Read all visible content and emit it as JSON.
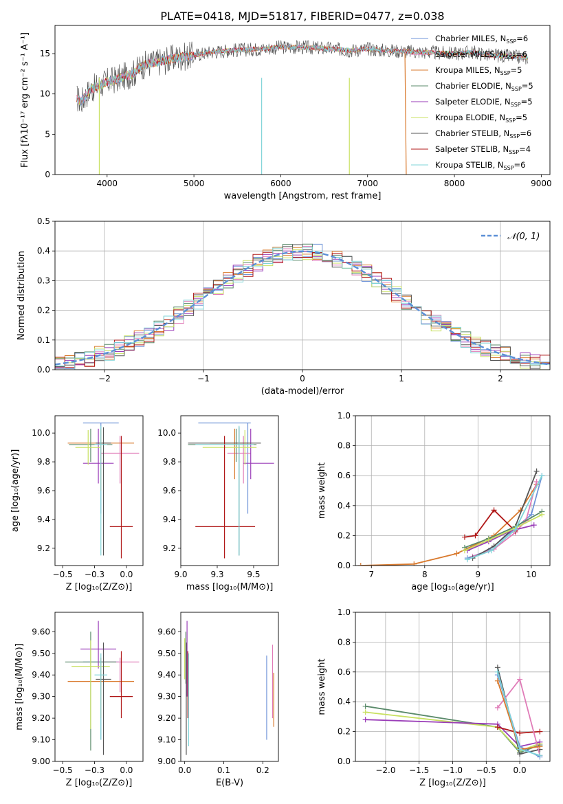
{
  "title": "PLATE=0418, MJD=51817, FIBERID=0477, z=0.038",
  "colors": {
    "chabrier_miles": "#6f94d8",
    "salpeter_miles": "#e07cb8",
    "kroupa_miles": "#d97a2e",
    "chabrier_elodie": "#5a8a6a",
    "salpeter_elodie": "#9a3db8",
    "kroupa_elodie": "#c8e060",
    "chabrier_stelib": "#555555",
    "salpeter_stelib": "#b01818",
    "kroupa_stelib": "#7fd4d8",
    "gauss": "#5b8fd6"
  },
  "legend_ssp": [
    {
      "label": "Chabrier MILES, N",
      "sub": "SSP",
      "tail": "=6",
      "color_key": "chabrier_miles"
    },
    {
      "label": "Salpeter MILES, N",
      "sub": "SSP",
      "tail": "=6",
      "color_key": "salpeter_miles"
    },
    {
      "label": "Kroupa MILES, N",
      "sub": "SSP",
      "tail": "=5",
      "color_key": "kroupa_miles"
    },
    {
      "label": "Chabrier ELODIE, N",
      "sub": "SSP",
      "tail": "=5",
      "color_key": "chabrier_elodie"
    },
    {
      "label": "Salpeter ELODIE, N",
      "sub": "SSP",
      "tail": "=5",
      "color_key": "salpeter_elodie"
    },
    {
      "label": "Kroupa ELODIE, N",
      "sub": "SSP",
      "tail": "=5",
      "color_key": "kroupa_elodie"
    },
    {
      "label": "Chabrier STELIB, N",
      "sub": "SSP",
      "tail": "=6",
      "color_key": "chabrier_stelib"
    },
    {
      "label": "Salpeter STELIB, N",
      "sub": "SSP",
      "tail": "=4",
      "color_key": "salpeter_stelib"
    },
    {
      "label": "Kroupa STELIB, N",
      "sub": "SSP",
      "tail": "=6",
      "color_key": "kroupa_stelib"
    }
  ],
  "chart_data": [
    {
      "id": "spectrum",
      "type": "line",
      "xlabel": "wavelength [Angstrom, rest frame]",
      "ylabel": "Flux [fλ10⁻¹⁷ erg cm⁻² s⁻¹ A⁻¹]",
      "xlim": [
        3400,
        9100
      ],
      "ylim": [
        0,
        18.5
      ],
      "xticks": [
        4000,
        5000,
        6000,
        7000,
        8000,
        9000
      ],
      "yticks": [
        0,
        5,
        10,
        15
      ],
      "data_envelope": {
        "x": [
          3650,
          3700,
          3800,
          3900,
          4000,
          4100,
          4200,
          4300,
          4400,
          4500,
          4600,
          4800,
          5000,
          5200,
          5400,
          5600,
          5800,
          6000,
          6200,
          6400,
          6600,
          6800,
          7000,
          7200,
          7400,
          7600,
          7800,
          8000,
          8200,
          8400,
          8600,
          8800
        ],
        "y": [
          9.5,
          9.0,
          10.5,
          11.0,
          11.5,
          11.8,
          12.2,
          12.5,
          13.5,
          13.8,
          14.0,
          14.5,
          14.8,
          15.2,
          15.4,
          15.5,
          15.6,
          15.8,
          15.8,
          15.7,
          15.6,
          15.4,
          15.6,
          15.4,
          15.3,
          15.2,
          15.1,
          15.0,
          15.2,
          14.8,
          14.7,
          14.5
        ]
      },
      "model_dropouts": [
        {
          "series": "kroupa_miles",
          "x_from": 7430
        },
        {
          "series": "kroupa_elodie",
          "x": 3910
        },
        {
          "series": "kroupa_stelib",
          "x": 5780
        },
        {
          "series": "kroupa_elodie",
          "x": 6790
        }
      ]
    },
    {
      "id": "residuals",
      "type": "histogram",
      "xlabel": "(data-model)/error",
      "ylabel": "Normed distribution",
      "xlim": [
        -2.5,
        2.5
      ],
      "ylim": [
        0,
        0.5
      ],
      "xticks": [
        -2,
        -1,
        0,
        1,
        2
      ],
      "yticks": [
        0.0,
        0.1,
        0.2,
        0.3,
        0.4,
        0.5
      ],
      "bin_width": 0.1,
      "gauss_label": "𝒩(0, 1)"
    },
    {
      "id": "age_vs_z",
      "type": "scatter",
      "xlabel": "Z [log₁₀(Z/Z⊙)]",
      "ylabel": "age  [log₁₀(age/yr)]",
      "xlim": [
        -0.56,
        0.13
      ],
      "ylim": [
        9.08,
        10.12
      ],
      "xticks": [
        -0.5,
        -0.25,
        0.0
      ],
      "yticks": [
        9.2,
        9.4,
        9.6,
        9.8,
        10.0
      ],
      "points": [
        {
          "s": "chabrier_miles",
          "x": -0.2,
          "xe": 0.14,
          "y": 10.07,
          "yl": 9.44,
          "yh": 10.07
        },
        {
          "s": "salpeter_miles",
          "x": -0.05,
          "xe": 0.15,
          "y": 9.86,
          "yl": 9.65,
          "yh": 9.98
        },
        {
          "s": "kroupa_miles",
          "x": -0.2,
          "xe": 0.26,
          "y": 9.93,
          "yl": 9.6,
          "yh": 10.03
        },
        {
          "s": "chabrier_elodie",
          "x": -0.28,
          "xe": 0.17,
          "y": 9.92,
          "yl": 9.8,
          "yh": 10.03
        },
        {
          "s": "salpeter_elodie",
          "x": -0.22,
          "xe": 0.12,
          "y": 9.79,
          "yl": 9.65,
          "yh": 10.03
        },
        {
          "s": "kroupa_elodie",
          "x": -0.3,
          "xe": 0.1,
          "y": 9.9,
          "yl": 9.78,
          "yh": 10.02
        },
        {
          "s": "chabrier_stelib",
          "x": -0.18,
          "xe": 0.06,
          "y": 9.93,
          "yl": 9.15,
          "yh": 10.04
        },
        {
          "s": "salpeter_stelib",
          "x": -0.04,
          "xe": 0.09,
          "y": 9.35,
          "yl": 9.13,
          "yh": 9.98
        },
        {
          "s": "kroupa_stelib",
          "x": -0.2,
          "xe": 0.05,
          "y": 9.92,
          "yl": 9.15,
          "yh": 10.05
        }
      ]
    },
    {
      "id": "age_vs_mass",
      "type": "scatter",
      "xlabel": "mass [log₁₀(M/M⊙)]",
      "ylabel": "",
      "xlim": [
        9.0,
        9.67
      ],
      "ylim": [
        9.08,
        10.12
      ],
      "xticks": [
        9.0,
        9.25,
        9.5
      ],
      "yticks": [
        9.2,
        9.4,
        9.6,
        9.8,
        10.0
      ],
      "points": [
        {
          "s": "chabrier_miles",
          "x": 9.46,
          "xl": 9.12,
          "xh": 9.48,
          "y": 10.07,
          "yl": 9.44,
          "yh": 10.07
        },
        {
          "s": "salpeter_miles",
          "x": 9.43,
          "xl": 9.32,
          "xh": 9.48,
          "y": 9.86,
          "yl": 9.65,
          "yh": 9.98
        },
        {
          "s": "kroupa_miles",
          "x": 9.37,
          "xl": 9.2,
          "xh": 9.48,
          "y": 9.93,
          "yl": 9.68,
          "yh": 10.03
        },
        {
          "s": "chabrier_elodie",
          "x": 9.38,
          "xl": 9.05,
          "xh": 9.52,
          "y": 9.92,
          "yl": 9.8,
          "yh": 10.03
        },
        {
          "s": "salpeter_elodie",
          "x": 9.48,
          "xl": 9.43,
          "xh": 9.64,
          "y": 9.79,
          "yl": 9.68,
          "yh": 10.03
        },
        {
          "s": "kroupa_elodie",
          "x": 9.44,
          "xl": 9.15,
          "xh": 9.52,
          "y": 9.9,
          "yl": 9.78,
          "yh": 10.02
        },
        {
          "s": "chabrier_stelib",
          "x": 9.4,
          "xl": 9.05,
          "xh": 9.55,
          "y": 9.93,
          "yl": 9.15,
          "yh": 10.04
        },
        {
          "s": "salpeter_stelib",
          "x": 9.3,
          "xl": 9.1,
          "xh": 9.51,
          "y": 9.35,
          "yl": 9.13,
          "yh": 9.98
        },
        {
          "s": "kroupa_stelib",
          "x": 9.4,
          "xl": 9.1,
          "xh": 9.5,
          "y": 9.92,
          "yl": 9.15,
          "yh": 10.05
        }
      ]
    },
    {
      "id": "mass_weight_vs_age",
      "type": "line",
      "xlabel": "age  [log₁₀(age/yr)]",
      "ylabel": "mass weight",
      "xlim": [
        6.7,
        10.35
      ],
      "ylim": [
        0,
        1.0
      ],
      "xticks": [
        7,
        8,
        9,
        10
      ],
      "yticks": [
        0.0,
        0.2,
        0.4,
        0.6,
        0.8,
        1.0
      ],
      "series": [
        {
          "s": "kroupa_miles",
          "x": [
            6.8,
            7.8,
            8.6,
            9.3,
            9.8,
            10.1
          ],
          "y": [
            0.0,
            0.01,
            0.08,
            0.2,
            0.37,
            0.54
          ]
        },
        {
          "s": "chabrier_miles",
          "x": [
            8.8,
            9.2,
            9.6,
            10.0,
            10.2
          ],
          "y": [
            0.05,
            0.1,
            0.22,
            0.34,
            0.6
          ]
        },
        {
          "s": "salpeter_miles",
          "x": [
            8.9,
            9.3,
            9.7,
            9.9,
            10.1
          ],
          "y": [
            0.06,
            0.11,
            0.22,
            0.3,
            0.56
          ]
        },
        {
          "s": "chabrier_stelib",
          "x": [
            8.9,
            9.3,
            9.7,
            10.1
          ],
          "y": [
            0.05,
            0.13,
            0.26,
            0.63
          ]
        },
        {
          "s": "salpeter_stelib",
          "x": [
            8.75,
            8.95,
            9.3,
            9.7
          ],
          "y": [
            0.19,
            0.2,
            0.37,
            0.23
          ]
        },
        {
          "s": "salpeter_elodie",
          "x": [
            8.8,
            9.2,
            9.6,
            10.05
          ],
          "y": [
            0.1,
            0.16,
            0.23,
            0.27
          ]
        },
        {
          "s": "chabrier_elodie",
          "x": [
            8.75,
            9.2,
            9.7,
            10.2
          ],
          "y": [
            0.12,
            0.18,
            0.26,
            0.36
          ]
        },
        {
          "s": "kroupa_elodie",
          "x": [
            8.75,
            9.2,
            9.7,
            10.2
          ],
          "y": [
            0.1,
            0.17,
            0.25,
            0.34
          ]
        },
        {
          "s": "kroupa_stelib",
          "x": [
            8.8,
            9.25,
            9.7,
            10.2
          ],
          "y": [
            0.04,
            0.1,
            0.24,
            0.6
          ]
        }
      ]
    },
    {
      "id": "mass_vs_z",
      "type": "scatter",
      "xlabel": "Z [log₁₀(Z/Z⊙)]",
      "ylabel": "mass [log₁₀(M/M⊙)]",
      "xlim": [
        -0.56,
        0.13
      ],
      "ylim": [
        9.0,
        9.69
      ],
      "xticks": [
        -0.5,
        -0.25,
        0.0
      ],
      "yticks": [
        9.0,
        9.1,
        9.2,
        9.3,
        9.4,
        9.5,
        9.6
      ],
      "points": [
        {
          "s": "chabrier_miles",
          "x": -0.2,
          "xe": 0.14,
          "y": 9.46,
          "yl": 9.1,
          "yh": 9.48
        },
        {
          "s": "salpeter_miles",
          "x": -0.05,
          "xe": 0.15,
          "y": 9.46,
          "yl": 9.32,
          "yh": 9.48
        },
        {
          "s": "kroupa_miles",
          "x": -0.2,
          "xe": 0.26,
          "y": 9.37,
          "yl": 9.2,
          "yh": 9.48
        },
        {
          "s": "chabrier_elodie",
          "x": -0.28,
          "xe": 0.2,
          "y": 9.46,
          "yl": 9.05,
          "yh": 9.6
        },
        {
          "s": "salpeter_elodie",
          "x": -0.22,
          "xe": 0.14,
          "y": 9.52,
          "yl": 9.43,
          "yh": 9.65
        },
        {
          "s": "kroupa_elodie",
          "x": -0.28,
          "xe": 0.15,
          "y": 9.44,
          "yl": 9.15,
          "yh": 9.56
        },
        {
          "s": "chabrier_stelib",
          "x": -0.18,
          "xe": 0.06,
          "y": 9.38,
          "yl": 9.03,
          "yh": 9.55
        },
        {
          "s": "salpeter_stelib",
          "x": -0.04,
          "xe": 0.09,
          "y": 9.3,
          "yl": 9.2,
          "yh": 9.51
        },
        {
          "s": "kroupa_stelib",
          "x": -0.2,
          "xe": 0.05,
          "y": 9.4,
          "yl": 9.1,
          "yh": 9.5
        }
      ]
    },
    {
      "id": "mass_vs_ebv",
      "type": "scatter",
      "xlabel": "E(B-V)",
      "ylabel": "",
      "xlim": [
        -0.01,
        0.24
      ],
      "ylim": [
        9.0,
        9.69
      ],
      "xticks": [
        0.0,
        0.1,
        0.2
      ],
      "yticks": [
        9.0,
        9.1,
        9.2,
        9.3,
        9.4,
        9.5,
        9.6
      ],
      "points": [
        {
          "s": "chabrier_miles",
          "x": 0.21,
          "y": 9.3,
          "yl": 9.1,
          "yh": 9.49
        },
        {
          "s": "salpeter_miles",
          "x": 0.225,
          "y": 9.38,
          "yl": 9.2,
          "yh": 9.54
        },
        {
          "s": "kroupa_miles",
          "x": 0.228,
          "y": 9.3,
          "yl": 9.16,
          "yh": 9.41
        },
        {
          "s": "chabrier_elodie",
          "x": 0.003,
          "y": 9.45,
          "yl": 9.36,
          "yh": 9.6
        },
        {
          "s": "salpeter_elodie",
          "x": 0.006,
          "y": 9.5,
          "yl": 9.3,
          "yh": 9.65
        },
        {
          "s": "kroupa_elodie",
          "x": 0.0,
          "y": 9.45,
          "yl": 9.38,
          "yh": 9.57
        },
        {
          "s": "chabrier_stelib",
          "x": 0.004,
          "y": 9.3,
          "yl": 9.03,
          "yh": 9.55
        },
        {
          "s": "salpeter_stelib",
          "x": 0.008,
          "y": 9.35,
          "yl": 9.2,
          "yh": 9.51
        },
        {
          "s": "kroupa_stelib",
          "x": 0.01,
          "y": 9.3,
          "yl": 9.07,
          "yh": 9.5
        }
      ]
    },
    {
      "id": "mass_weight_vs_z",
      "type": "line",
      "xlabel": "Z [log₁₀(Z/Z⊙)]",
      "ylabel": "mass weight",
      "xlim": [
        -2.45,
        0.45
      ],
      "ylim": [
        0,
        1.0
      ],
      "xticks": [
        -2.0,
        -1.5,
        -1.0,
        -0.5,
        0.0
      ],
      "yticks": [
        0.0,
        0.2,
        0.4,
        0.6,
        0.8,
        1.0
      ],
      "series": [
        {
          "s": "chabrier_elodie",
          "x": [
            -2.3,
            -0.33,
            0.0,
            0.3
          ],
          "y": [
            0.37,
            0.23,
            0.06,
            0.11
          ]
        },
        {
          "s": "kroupa_elodie",
          "x": [
            -2.3,
            -0.33,
            0.0,
            0.3
          ],
          "y": [
            0.33,
            0.23,
            0.07,
            0.12
          ]
        },
        {
          "s": "salpeter_elodie",
          "x": [
            -2.3,
            -0.33,
            0.0,
            0.3
          ],
          "y": [
            0.28,
            0.25,
            0.1,
            0.13
          ]
        },
        {
          "s": "chabrier_stelib",
          "x": [
            -0.33,
            0.0,
            0.3
          ],
          "y": [
            0.63,
            0.05,
            0.08
          ]
        },
        {
          "s": "salpeter_stelib",
          "x": [
            -0.33,
            0.0,
            0.3
          ],
          "y": [
            0.23,
            0.19,
            0.2
          ]
        },
        {
          "s": "salpeter_miles",
          "x": [
            -0.33,
            0.0,
            0.3
          ],
          "y": [
            0.36,
            0.55,
            0.04
          ]
        },
        {
          "s": "chabrier_miles",
          "x": [
            -0.33,
            0.0,
            0.3
          ],
          "y": [
            0.58,
            0.1,
            0.03
          ]
        },
        {
          "s": "kroupa_miles",
          "x": [
            -0.33,
            0.0,
            0.3
          ],
          "y": [
            0.54,
            0.08,
            0.1
          ]
        },
        {
          "s": "kroupa_stelib",
          "x": [
            -0.33,
            0.0,
            0.3
          ],
          "y": [
            0.6,
            0.08,
            0.04
          ]
        }
      ]
    }
  ]
}
